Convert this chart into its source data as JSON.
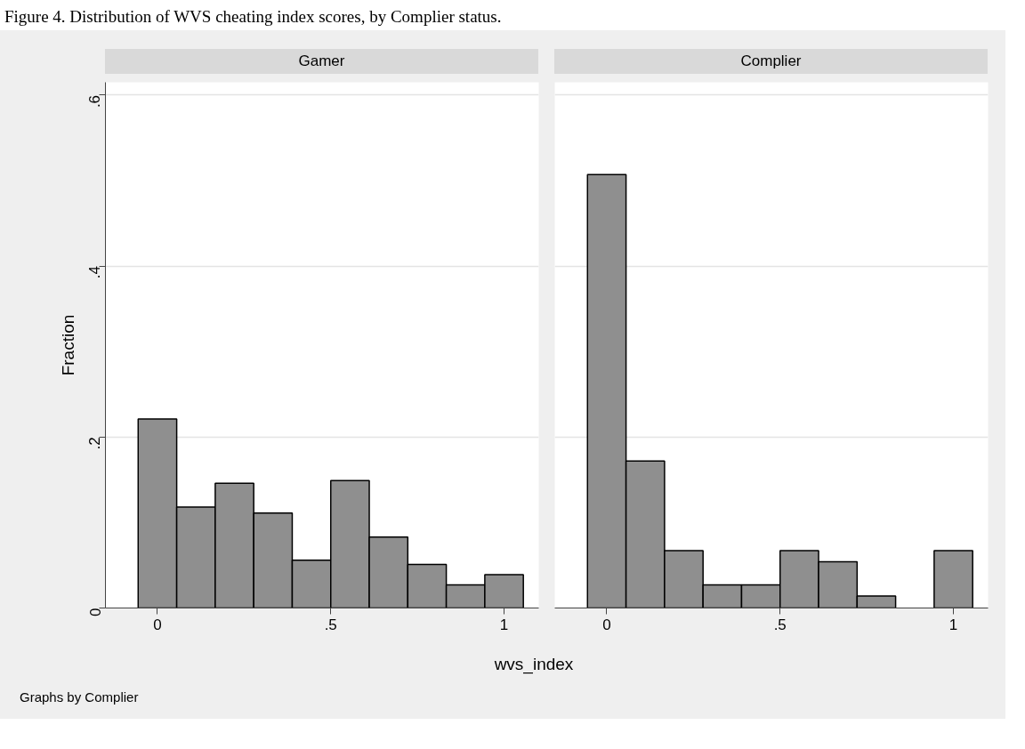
{
  "chart_data": [
    {
      "type": "histogram",
      "title": "Gamer",
      "ylabel": "Fraction",
      "xlabel": "wvs_index",
      "annotations": [
        "Figure 4. Distribution of WVS cheating index scores, by Complier status.",
        "Graphs by Complier"
      ],
      "bins": [
        -0.0556,
        0.0556,
        0.1667,
        0.2778,
        0.3889,
        0.5,
        0.6111,
        0.7222,
        0.8333,
        0.9444,
        1.0556
      ],
      "values": [
        0.221,
        0.118,
        0.146,
        0.111,
        0.056,
        0.149,
        0.083,
        0.051,
        0.027,
        0.039
      ],
      "color": "#8f8f8f",
      "xlim": [
        -0.15,
        1.1
      ],
      "xticks": [
        0,
        {
          "value": 0.5,
          "label": ".5"
        },
        1
      ],
      "ylim": [
        0,
        0.615
      ],
      "yticks": [
        0,
        {
          "value": 0.2,
          "label": ".2"
        },
        {
          "value": 0.4,
          "label": ".4"
        },
        {
          "value": 0.6,
          "label": ".6"
        }
      ],
      "grid": "y"
    },
    {
      "type": "histogram",
      "title": "Complier",
      "bins": [
        -0.0556,
        0.0556,
        0.1667,
        0.2778,
        0.3889,
        0.5,
        0.6111,
        0.7222,
        0.8333,
        0.9444,
        1.0556
      ],
      "values": [
        0.507,
        0.172,
        0.067,
        0.027,
        0.027,
        0.067,
        0.054,
        0.014,
        0,
        0.067
      ],
      "color": "#8f8f8f",
      "xlim": [
        -0.15,
        1.1
      ],
      "xticks": [
        0,
        {
          "value": 0.5,
          "label": ".5"
        },
        1
      ],
      "ylim": [
        0,
        0.615
      ],
      "yticks": [
        0,
        0.2,
        0.4,
        0.6
      ],
      "grid": "y",
      "tick_labels": "x"
    }
  ]
}
